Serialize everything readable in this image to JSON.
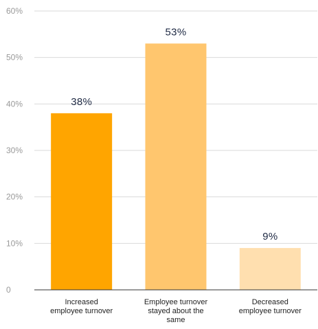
{
  "chart_data": {
    "type": "bar",
    "categories": [
      [
        "Increased",
        "employee turnover"
      ],
      [
        "Employee turnover",
        "stayed about the",
        "same"
      ],
      [
        "Decreased",
        "employee turnover"
      ]
    ],
    "values": [
      38,
      53,
      9
    ],
    "data_labels": [
      "38%",
      "53%",
      "9%"
    ],
    "colors": [
      "#FFA500",
      "#FFC66E",
      "#FFDFAF"
    ],
    "ylim": [
      0,
      60
    ],
    "yticks": [
      0,
      10,
      20,
      30,
      40,
      50,
      60
    ],
    "ytick_labels": [
      "0",
      "10%",
      "20%",
      "30%",
      "40%",
      "50%",
      "60%"
    ],
    "grid": true,
    "title": "",
    "xlabel": "",
    "ylabel": ""
  }
}
